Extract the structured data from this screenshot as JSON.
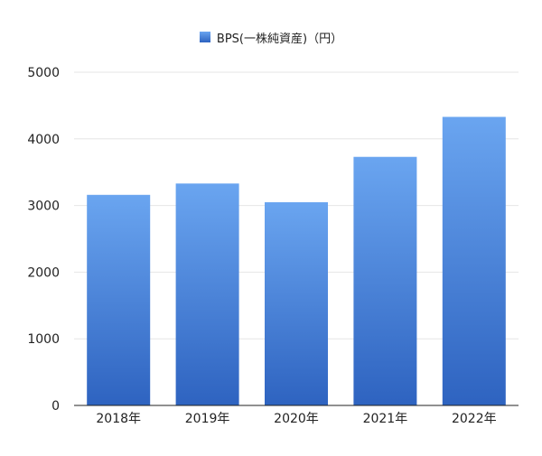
{
  "chart_data": {
    "type": "bar",
    "categories": [
      "2018年",
      "2019年",
      "2020年",
      "2021年",
      "2022年"
    ],
    "series": [
      {
        "name": "BPS(一株純資産)（円）",
        "values": [
          3160,
          3330,
          3050,
          3730,
          4330
        ]
      }
    ],
    "ylim": [
      0,
      5000
    ],
    "yticks": [
      "0",
      "1000",
      "2000",
      "3000",
      "4000",
      "5000"
    ],
    "grid": true,
    "legend": "top-center",
    "colors": {
      "bar_top": "#6aa5f0",
      "bar_bottom": "#2e63c0",
      "grid": "#e6e6e6",
      "axis": "#222222"
    }
  }
}
